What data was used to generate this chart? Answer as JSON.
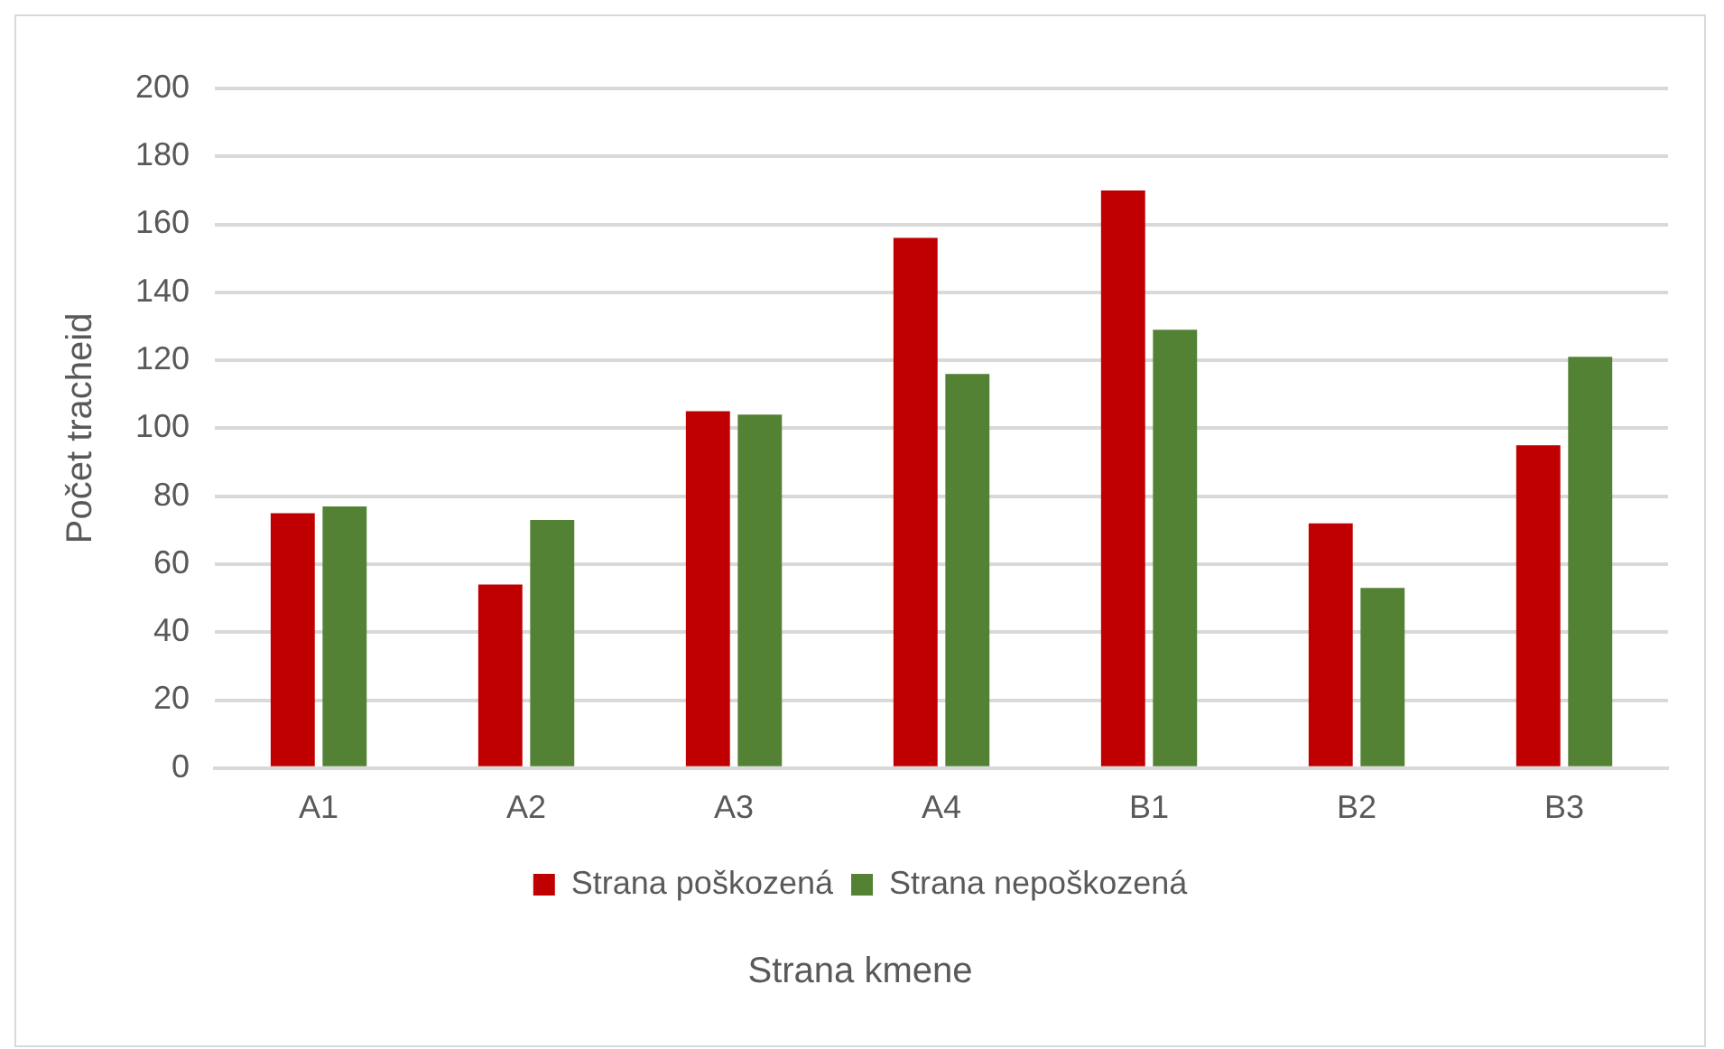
{
  "chart_data": {
    "type": "bar",
    "xlabel": "Strana kmene",
    "ylabel": "Počet tracheid",
    "categories": [
      "A1",
      "A2",
      "A3",
      "A4",
      "B1",
      "B2",
      "B3"
    ],
    "series": [
      {
        "name": "Strana poškozená",
        "color": "#c00000",
        "values": [
          75,
          54,
          105,
          156,
          170,
          72,
          95
        ]
      },
      {
        "name": "Strana nepoškozená",
        "color": "#548235",
        "values": [
          77,
          73,
          104,
          116,
          129,
          53,
          121
        ]
      }
    ],
    "ylim": [
      0,
      200
    ],
    "yticks": [
      0,
      20,
      40,
      60,
      80,
      100,
      120,
      140,
      160,
      180,
      200
    ],
    "grid": "y",
    "legend": "bottom"
  }
}
